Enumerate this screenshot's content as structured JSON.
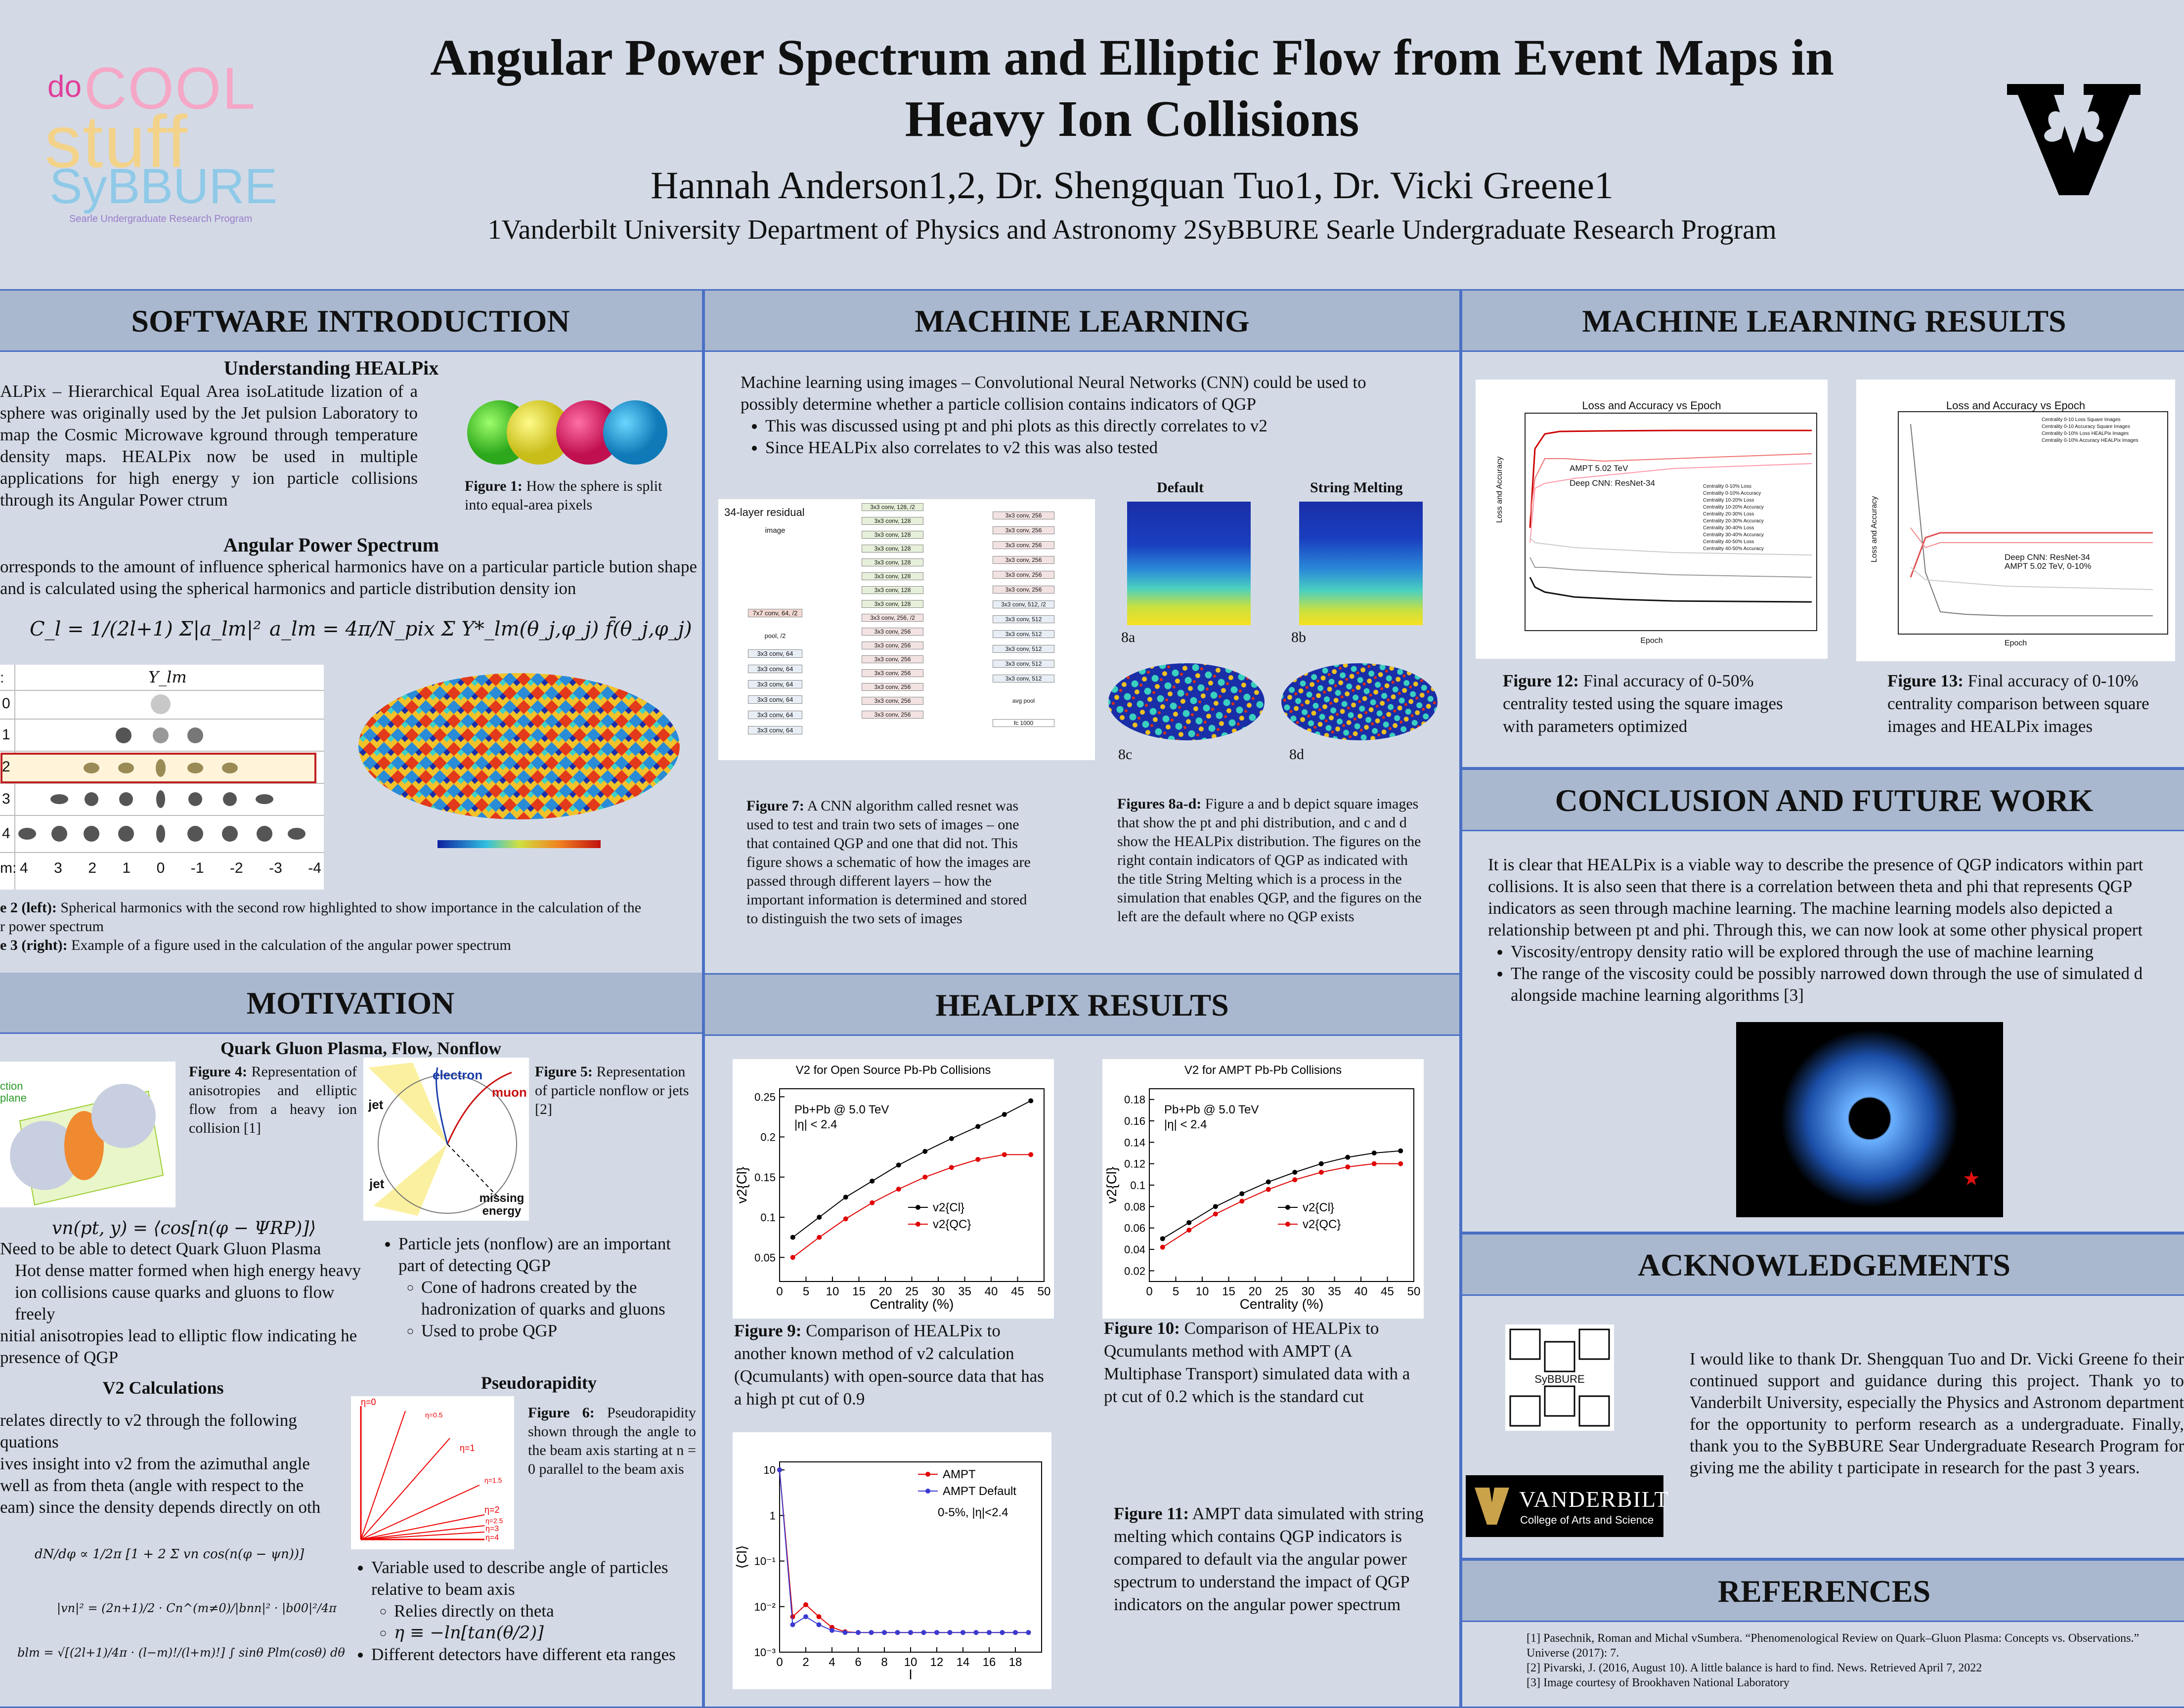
{
  "header": {
    "title_line1": "Angular Power Spectrum and Elliptic Flow from Event Maps in",
    "title_line2": "Heavy Ion Collisions",
    "authors": "Hannah Anderson1,2, Dr. Shengquan Tuo1, Dr. Vicki Greene1",
    "affiliations": "1Vanderbilt University Department of Physics and Astronomy 2SyBBURE Searle Undergraduate Research Program",
    "logo_left_text": [
      "do",
      "COOL",
      "stuff",
      "SyBBURE",
      "Searle Undergraduate Research Program"
    ]
  },
  "sections": {
    "software": {
      "heading": "SOFTWARE INTRODUCTION",
      "sub1": "Understanding HEALPix",
      "para1": "ALPix – Hierarchical Equal Area isoLatitude lization of a sphere was originally used by the Jet pulsion Laboratory to map the Cosmic Microwave kground through temperature density maps. HEALPix now be used in multiple applications for high energy y ion particle collisions through its Angular Power ctrum",
      "fig1_caption_bold": "Figure 1:",
      "fig1_caption": " How the sphere is split into equal-area pixels",
      "sub2": "Angular Power Spectrum",
      "para2": "orresponds to the amount of influence spherical harmonics have on a particular particle bution shape and is calculated using the spherical harmonics and particle distribution density ion",
      "eq1": "C_l = 1/(2l+1) Σ|a_lm|²",
      "eq2": "a_lm = 4π/N_pix Σ Y*_lm(θ_j,φ_j) f̄(θ_j,φ_j)",
      "ylm_label": "Y_lm",
      "ylm_rows": [
        "0",
        "1",
        "2",
        "3",
        "4",
        "m:"
      ],
      "m_values": [
        "4",
        "3",
        "2",
        "1",
        "0",
        "-1",
        "-2",
        "-3",
        "-4"
      ],
      "fig23_caption_line1_bold": "e 2 (left):",
      "fig23_caption_line1": " Spherical harmonics with the second row highlighted to show importance in the calculation of the",
      "fig23_caption_line2": "r power spectrum",
      "fig23_caption_line3_bold": "e 3 (right):",
      "fig23_caption_line3": " Example of a figure used in the calculation of the angular power spectrum"
    },
    "ml": {
      "heading": "MACHINE LEARNING",
      "intro": "Machine learning using images – Convolutional Neural Networks (CNN) could be used to possibly determine whether a particle collision contains indicators of QGP",
      "bullets": [
        "This was discussed using pt and phi plots as this directly correlates to v2",
        "Since HEALPix also correlates to v2 this was also tested"
      ],
      "resnet_label": "34-layer residual",
      "resnet_col1": [
        "image",
        "7x7 conv, 64, /2",
        "pool, /2",
        "3x3 conv, 64",
        "3x3 conv, 64",
        "3x3 conv, 64",
        "3x3 conv, 64",
        "3x3 conv, 64",
        "3x3 conv, 64"
      ],
      "resnet_col2": [
        "3x3 conv, 128, /2",
        "3x3 conv, 128",
        "3x3 conv, 128",
        "3x3 conv, 128",
        "3x3 conv, 128",
        "3x3 conv, 128",
        "3x3 conv, 128",
        "3x3 conv, 128",
        "3x3 conv, 256, /2",
        "3x3 conv, 256",
        "3x3 conv, 256",
        "3x3 conv, 256",
        "3x3 conv, 256",
        "3x3 conv, 256",
        "3x3 conv, 256",
        "3x3 conv, 256"
      ],
      "resnet_col3": [
        "3x3 conv, 256",
        "3x3 conv, 256",
        "3x3 conv, 256",
        "3x3 conv, 256",
        "3x3 conv, 256",
        "3x3 conv, 256",
        "3x3 conv, 512, /2",
        "3x3 conv, 512",
        "3x3 conv, 512",
        "3x3 conv, 512",
        "3x3 conv, 512",
        "3x3 conv, 512",
        "avg pool",
        "fc 1000"
      ],
      "default_label": "Default",
      "melting_label": "String Melting",
      "fig8_labels": [
        "8a",
        "8b",
        "8c",
        "8d"
      ],
      "fig7_bold": "Figure 7:",
      "fig7": " A CNN algorithm called resnet was used to test and train two sets of images – one that contained QGP and one that did not. This figure shows a schematic of how the images are passed through different layers – how the important information is determined and stored to distinguish the two sets of images",
      "fig8_bold": "Figures 8a-d:",
      "fig8": " Figure a and b depict square images that show the pt and phi distribution, and c and d show the HEALPix distribution. The figures on the right contain indicators of QGP as indicated with the title String Melting which is a process in the simulation that enables QGP, and the figures on the left are the default where no QGP exists"
    },
    "mlresults": {
      "heading": "MACHINE LEARNING RESULTS",
      "fig12_title": "Loss and Accuracy vs Epoch",
      "fig12_annot1": "AMPT 5.02 TeV",
      "fig12_annot2": "Deep CNN: ResNet-34",
      "fig12_xlabel": "Epoch",
      "fig12_ylabel": "Loss and Accuracy",
      "fig12_legend": [
        "Centrality 0-10% Loss",
        "Centrality 0-10% Accuracy",
        "Centrality 10-20% Loss",
        "Centrality 10-20% Accuracy",
        "Centrality 20-30% Loss",
        "Centrality 20-30% Accuracy",
        "Centrality 30-40% Loss",
        "Centrality 30-40% Accuracy",
        "Centrality 40-50% Loss",
        "Centrality 40-50% Accuracy"
      ],
      "fig13_title": "Loss and Accuracy vs Epoch",
      "fig13_annot1": "Deep CNN: ResNet-34",
      "fig13_annot2": "AMPT 5.02 TeV, 0-10%",
      "fig13_xlabel": "Epoch",
      "fig13_ylabel": "Loss and Accuracy",
      "fig13_legend": [
        "Centrality 0-10 Loss Square Images",
        "Centrality 0-10 Accuracy Square Images",
        "Centrality 0-10% Loss HEALPix Images",
        "Centrality 0-10% Accuracy HEALPix Images"
      ],
      "fig12_bold": "Figure 12:",
      "fig12_caption": " Final accuracy of 0-50% centrality tested using the square images with parameters optimized",
      "fig13_bold": "Figure 13:",
      "fig13_caption": " Final accuracy of 0-10% centrality comparison between square images and HEALPix images"
    },
    "conclusion": {
      "heading": "CONCLUSION AND FUTURE WORK",
      "para": "It is clear that HEALPix is a viable way to describe the presence of QGP indicators within part collisions. It is also seen that there is a correlation between theta and phi that represents QGP indicators as seen through machine learning. The machine learning models also depicted a relationship between pt and phi. Through this, we can now look at some other physical propert",
      "bullets": [
        "Viscosity/entropy density ratio will be explored through the use of machine learning",
        "The range of the viscosity could be possibly narrowed down through the use of simulated d alongside machine learning algorithms [3]"
      ]
    },
    "motivation": {
      "heading": "MOTIVATION",
      "sub1": "Quark Gluon Plasma, Flow, Nonflow",
      "fig4_bold": "Figure 4:",
      "fig4": " Representation of anisotropies and elliptic flow from a heavy ion collision [1]",
      "fig4_label": "ction plane",
      "fig5_bold": "Figure 5:",
      "fig5": " Representation of particle nonflow or jets [2]",
      "fig5_labels": [
        "electron",
        "muon",
        "jet",
        "jet",
        "missing energy"
      ],
      "vn_eq": "vn(pt, y) = ⟨cos[n(φ − ΨRP)]⟩",
      "left_bullets": [
        "Need to be able to detect Quark Gluon Plasma",
        "Hot dense matter formed when high energy heavy ion collisions cause quarks and gluons to flow freely",
        "nitial anisotropies lead to elliptic flow indicating he presence of QGP"
      ],
      "right_bullets": [
        "Particle jets (nonflow) are an important part of detecting QGP",
        "Cone of hadrons created by the hadronization of quarks and gluons",
        "Used to probe QGP"
      ],
      "sub2": "V2 Calculations",
      "v2_text1": "relates directly to v2 through the following quations",
      "v2_text2": "ives insight into v2 from the azimuthal angle well as from theta (angle with respect to the eam) since the density depends directly on oth",
      "eq_dn": "dN/dφ ∝ 1/2π [1 + 2 Σ vn cos(n(φ − ψn))]",
      "eq_vn": "|vn|² = (2n+1)/2 · Cn^(m≠0)/|bnn|² · |b00|²/4π",
      "eq_blm": "blm = √[(2l+1)/4π · (l−m)!/(l+m)!] ∫ sinθ Plm(cosθ) dθ",
      "sub3": "Pseudorapidity",
      "fig6_bold": "Figure 6:",
      "fig6": " Pseudorapidity shown through the angle to the beam axis starting at n = 0 parallel to the beam axis",
      "eta_labels": [
        "η=0",
        "η=0.5",
        "η=1",
        "η=1.5",
        "η=2",
        "η=2.5",
        "η=3",
        "η=4"
      ],
      "eta_bullets": [
        "Variable used to describe angle of particles relative to beam axis",
        "Relies directly on theta",
        "η ≡ −ln[tan(θ/2)]",
        "Different detectors have different eta ranges"
      ]
    },
    "healpix": {
      "heading": "HEALPIX RESULTS",
      "fig9_bold": "Figure 9:",
      "fig9": " Comparison of HEALPix to another known method of v2 calculation (Qcumulants) with open-source data that has a high pt cut of 0.9",
      "fig10_bold": "Figure 10:",
      "fig10": " Comparison of HEALPix to Qcumulants method with AMPT (A Multiphase Transport) simulated data with a pt cut of 0.2 which is the standard cut",
      "fig11_bold": "Figure 11:",
      "fig11": " AMPT data simulated with string melting which contains QGP indicators is compared to default via the angular power spectrum to understand the impact of QGP indicators on the angular power spectrum"
    },
    "ack": {
      "heading": "ACKNOWLEDGEMENTS",
      "para": "I would like to thank Dr. Shengquan Tuo and Dr. Vicki Greene fo their continued support and guidance during this project. Thank yo to Vanderbilt University, especially the Physics and Astronom department for the opportunity to perform research as a undergraduate. Finally, thank you to the SyBBURE Sear Undergraduate Research Program for giving me the ability t participate in research for the past 3 years.",
      "sybbure_label": "SyBBURE",
      "vandy_label": "VANDERBILT",
      "vandy_sub": "College of Arts and Science"
    },
    "refs": {
      "heading": "REFERENCES",
      "items": [
        "[1] Pasechnik, Roman and Michal vSumbera. “Phenomenological Review on Quark–Gluon Plasma: Concepts vs. Observations.” Universe (2017): 7.",
        "[2] Pivarski, J. (2016, August 10). A little balance is hard to find. News. Retrieved April 7, 2022",
        "[3] Image courtesy of Brookhaven National Laboratory"
      ]
    }
  },
  "chart_data": [
    {
      "type": "line",
      "title": "V2 for Open Source Pb-Pb Collisions",
      "annotation": [
        "Pb+Pb @ 5.0 TeV",
        "|η| < 2.4"
      ],
      "xlabel": "Centrality (%)",
      "ylabel": "v2{Cl}",
      "xlim": [
        0,
        50
      ],
      "ylim": [
        0.02,
        0.26
      ],
      "xticks": [
        "0",
        "5",
        "10",
        "15",
        "20",
        "25",
        "30",
        "35",
        "40",
        "45",
        "50"
      ],
      "yticks": [
        "0.05",
        "0.1",
        "0.15",
        "0.2",
        "0.25"
      ],
      "x": [
        2.5,
        7.5,
        12.5,
        17.5,
        22.5,
        27.5,
        32.5,
        37.5,
        42.5,
        47.5
      ],
      "series": [
        {
          "name": "v2{Cl}",
          "color": "#000000",
          "values": [
            0.075,
            0.1,
            0.125,
            0.145,
            0.165,
            0.182,
            0.198,
            0.213,
            0.228,
            0.245
          ]
        },
        {
          "name": "v2{QC}",
          "color": "#e00000",
          "values": [
            0.05,
            0.075,
            0.098,
            0.118,
            0.135,
            0.15,
            0.162,
            0.172,
            0.178,
            0.178
          ]
        }
      ]
    },
    {
      "type": "line",
      "title": "V2 for AMPT Pb-Pb Collisions",
      "annotation": [
        "Pb+Pb @ 5.0 TeV",
        "|η| < 2.4"
      ],
      "xlabel": "Centrality (%)",
      "ylabel": "v2{Cl}",
      "xlim": [
        0,
        50
      ],
      "ylim": [
        0.01,
        0.19
      ],
      "xticks": [
        "0",
        "5",
        "10",
        "15",
        "20",
        "25",
        "30",
        "35",
        "40",
        "45",
        "50"
      ],
      "yticks": [
        "0.02",
        "0.04",
        "0.06",
        "0.08",
        "0.1",
        "0.12",
        "0.14",
        "0.16",
        "0.18"
      ],
      "x": [
        2.5,
        7.5,
        12.5,
        17.5,
        22.5,
        27.5,
        32.5,
        37.5,
        42.5,
        47.5
      ],
      "series": [
        {
          "name": "v2{Cl}",
          "color": "#000000",
          "values": [
            0.05,
            0.065,
            0.08,
            0.092,
            0.103,
            0.112,
            0.12,
            0.126,
            0.13,
            0.132
          ]
        },
        {
          "name": "v2{QC}",
          "color": "#e00000",
          "values": [
            0.042,
            0.058,
            0.073,
            0.085,
            0.096,
            0.105,
            0.112,
            0.117,
            0.12,
            0.12
          ]
        }
      ]
    },
    {
      "type": "line",
      "title": "",
      "annotation": [
        "0-5%, |η|<2.4"
      ],
      "xlabel": "l",
      "ylabel": "⟨Cl⟩",
      "log_y": true,
      "xlim": [
        0,
        20
      ],
      "ylim": [
        0.001,
        15
      ],
      "xticks": [
        "0",
        "2",
        "4",
        "6",
        "8",
        "10",
        "12",
        "14",
        "16",
        "18"
      ],
      "yticks": [
        "10⁻³",
        "10⁻²",
        "10⁻¹",
        "1",
        "10"
      ],
      "x": [
        0,
        1,
        2,
        3,
        4,
        5,
        6,
        7,
        8,
        9,
        10,
        11,
        12,
        13,
        14,
        15,
        16,
        17,
        18,
        19
      ],
      "series": [
        {
          "name": "AMPT",
          "color": "#e00000",
          "values": [
            10,
            0.006,
            0.011,
            0.006,
            0.0035,
            0.0028,
            0.0027,
            0.0027,
            0.0027,
            0.0027,
            0.0027,
            0.0027,
            0.0027,
            0.0027,
            0.0027,
            0.0027,
            0.0027,
            0.0027,
            0.0027,
            0.0027
          ]
        },
        {
          "name": "AMPT Default",
          "color": "#3a3ad0",
          "values": [
            10,
            0.004,
            0.006,
            0.004,
            0.003,
            0.0027,
            0.0027,
            0.0027,
            0.0027,
            0.0027,
            0.0027,
            0.0027,
            0.0027,
            0.0027,
            0.0027,
            0.0027,
            0.0027,
            0.0027,
            0.0027,
            0.0027
          ]
        }
      ]
    }
  ]
}
